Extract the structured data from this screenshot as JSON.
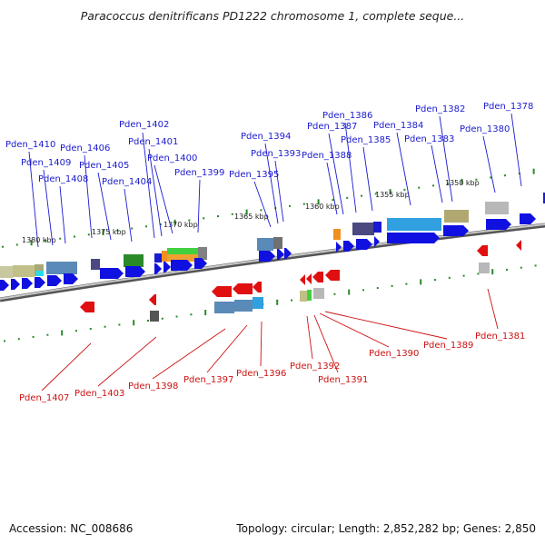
{
  "title": "Paracoccus denitrificans PD1222 chromosome 1, complete seque...",
  "footer": {
    "accession": "Accession: NC_008686",
    "summary": "Topology: circular; Length: 2,852,282 bp; Genes: 2,850"
  },
  "scale_labels": [
    "1380 kbp",
    "1375 kbp",
    "1370 kbp",
    "1365 kbp",
    "1360 kbp",
    "1355 kbp",
    "1350 kbp"
  ],
  "genes_forward": [
    "Pden_1410",
    "Pden_1409",
    "Pden_1408",
    "Pden_1406",
    "Pden_1405",
    "Pden_1404",
    "Pden_1402",
    "Pden_1401",
    "Pden_1400",
    "Pden_1399",
    "Pden_1395",
    "Pden_1394",
    "Pden_1393",
    "Pden_1388",
    "Pden_1387",
    "Pden_1386",
    "Pden_1385",
    "Pden_1384",
    "Pden_1383",
    "Pden_1382",
    "Pden_1380",
    "Pden_1378"
  ],
  "genes_reverse": [
    "Pden_1407",
    "Pden_1403",
    "Pden_1398",
    "Pden_1397",
    "Pden_1396",
    "Pden_1392",
    "Pden_1391",
    "Pden_1390",
    "Pden_1389",
    "Pden_1381"
  ],
  "colors": {
    "forward_label": "#1a1ad0",
    "reverse_label": "#cc1111",
    "forward_arrow": "#1010e0",
    "reverse_arrow": "#e01010",
    "backbone": "#8a8a8a",
    "tick": "#2a8a2a"
  }
}
